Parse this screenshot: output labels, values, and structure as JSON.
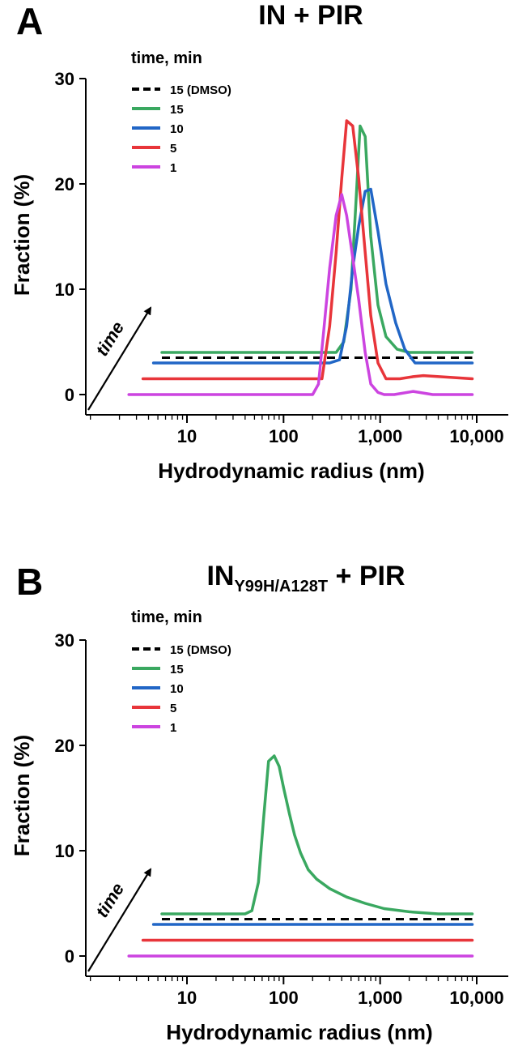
{
  "chart_data": [
    {
      "panel_letter": "A",
      "title": "IN + PIR",
      "title_main": "IN",
      "title_sub": "",
      "title_rest": " + PIR",
      "type": "line",
      "x_scale": "log",
      "xlabel": "Hydrodynamic radius (nm)",
      "ylabel": "Fraction (%)",
      "ylim": [
        0,
        30
      ],
      "xticks": [
        10,
        100,
        1000,
        10000
      ],
      "xtick_labels": [
        "10",
        "100",
        "1,000",
        "10,000"
      ],
      "yticks": [
        0,
        10,
        20,
        30
      ],
      "ytick_labels": [
        "0",
        "10",
        "20",
        "30"
      ],
      "time_arrow_label": "time",
      "legend_title": "time, min",
      "legend_placement": "top-left",
      "series": [
        {
          "name": "15 (DMSO)",
          "color": "#000000",
          "dashed": true,
          "offset": 3.5,
          "x": [
            5.5,
            9000
          ],
          "y": [
            0,
            0
          ]
        },
        {
          "name": "15",
          "color": "#3aa860",
          "dashed": false,
          "offset": 4.0,
          "x": [
            5.5,
            280,
            350,
            420,
            500,
            560,
            620,
            700,
            800,
            950,
            1150,
            1500,
            2000,
            9000
          ],
          "y": [
            0,
            0,
            0,
            1,
            6,
            14,
            21.5,
            20.5,
            11,
            4.5,
            1.5,
            0.3,
            0,
            0
          ]
        },
        {
          "name": "10",
          "color": "#2166c6",
          "dashed": false,
          "offset": 3.0,
          "x": [
            4.5,
            300,
            380,
            450,
            520,
            600,
            700,
            800,
            950,
            1150,
            1450,
            1800,
            2300,
            9000
          ],
          "y": [
            0,
            0,
            0.3,
            3.5,
            9,
            13,
            16.3,
            16.5,
            12.5,
            7.5,
            3.8,
            1.3,
            0,
            0
          ]
        },
        {
          "name": "5",
          "color": "#e8353a",
          "dashed": false,
          "offset": 1.5,
          "x": [
            3.5,
            250,
            300,
            350,
            400,
            450,
            520,
            600,
            700,
            800,
            950,
            1150,
            1600,
            2200,
            2800,
            9000
          ],
          "y": [
            0,
            0,
            5,
            12,
            19,
            24.5,
            24,
            19,
            12,
            6,
            1.5,
            0,
            0,
            0.2,
            0.3,
            0
          ]
        },
        {
          "name": "1",
          "color": "#cc44e0",
          "dashed": false,
          "offset": 0.0,
          "x": [
            2.5,
            200,
            230,
            260,
            300,
            350,
            400,
            450,
            520,
            600,
            700,
            800,
            950,
            1100,
            1400,
            2200,
            3500,
            9000
          ],
          "y": [
            0,
            0,
            1,
            6,
            12,
            17,
            19,
            17,
            13,
            9,
            4,
            1,
            0.2,
            0,
            0,
            0.3,
            0,
            0
          ]
        }
      ]
    },
    {
      "panel_letter": "B",
      "title": "INY99H/A128T + PIR",
      "title_main": "IN",
      "title_sub": "Y99H/A128T",
      "title_rest": " + PIR",
      "type": "line",
      "x_scale": "log",
      "xlabel": "Hydrodynamic radius (nm)",
      "ylabel": "Fraction (%)",
      "ylim": [
        0,
        30
      ],
      "xticks": [
        10,
        100,
        1000,
        10000
      ],
      "xtick_labels": [
        "10",
        "100",
        "1,000",
        "10,000"
      ],
      "yticks": [
        0,
        10,
        20,
        30
      ],
      "ytick_labels": [
        "0",
        "10",
        "20",
        "30"
      ],
      "time_arrow_label": "time",
      "legend_title": "time, min",
      "legend_placement": "top-left",
      "series": [
        {
          "name": "15 (DMSO)",
          "color": "#000000",
          "dashed": true,
          "offset": 3.5,
          "x": [
            5.5,
            9000
          ],
          "y": [
            0,
            0
          ]
        },
        {
          "name": "15",
          "color": "#3aa860",
          "dashed": false,
          "offset": 4.0,
          "x": [
            5.5,
            40,
            47,
            55,
            62,
            70,
            80,
            90,
            100,
            115,
            130,
            150,
            180,
            220,
            300,
            450,
            700,
            1100,
            2000,
            4000,
            9000
          ],
          "y": [
            0,
            0,
            0.3,
            3,
            9,
            14.5,
            15,
            14,
            12,
            9.5,
            7.5,
            5.8,
            4.2,
            3.3,
            2.4,
            1.6,
            1,
            0.5,
            0.2,
            0,
            0
          ]
        },
        {
          "name": "10",
          "color": "#2166c6",
          "dashed": false,
          "offset": 3.0,
          "x": [
            4.5,
            9000
          ],
          "y": [
            0,
            0
          ]
        },
        {
          "name": "5",
          "color": "#e8353a",
          "dashed": false,
          "offset": 1.5,
          "x": [
            3.5,
            9000
          ],
          "y": [
            0,
            0
          ]
        },
        {
          "name": "1",
          "color": "#cc44e0",
          "dashed": false,
          "offset": 0.0,
          "x": [
            2.5,
            9000
          ],
          "y": [
            0,
            0
          ]
        }
      ]
    }
  ]
}
